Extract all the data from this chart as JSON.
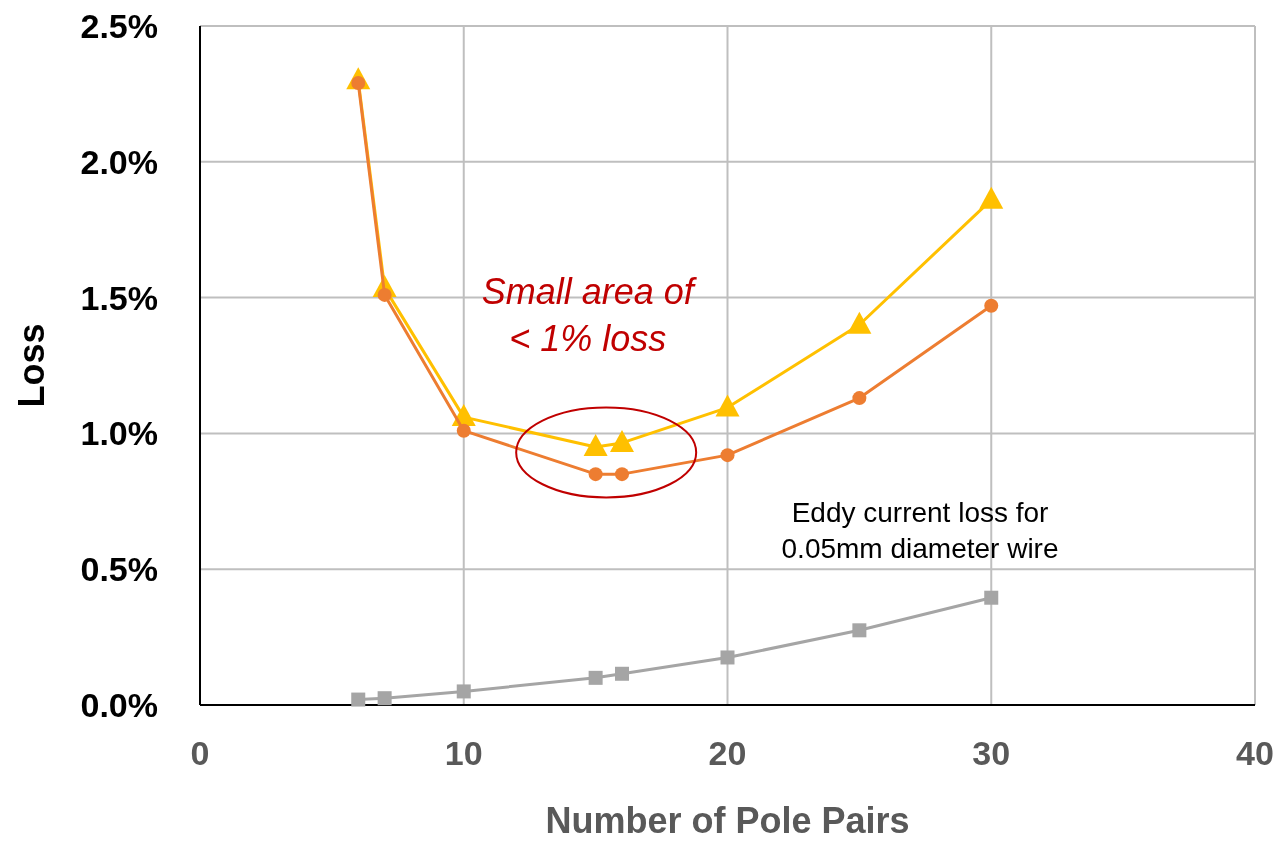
{
  "chart_data": {
    "type": "line",
    "xlabel": "Number of Pole Pairs",
    "ylabel": "Loss",
    "xlim": [
      0,
      40
    ],
    "xticks": [
      0,
      10,
      20,
      30,
      40
    ],
    "ylim": [
      0,
      2.5
    ],
    "yticks": [
      {
        "value": 0,
        "label": "0.0%"
      },
      {
        "value": 0.5,
        "label": "0.5%"
      },
      {
        "value": 1,
        "label": "1.0%"
      },
      {
        "value": 1.5,
        "label": "1.5%"
      },
      {
        "value": 2,
        "label": "2.0%"
      },
      {
        "value": 2.5,
        "label": "2.5%"
      }
    ],
    "grid": true,
    "line_style": "solid",
    "x": [
      6,
      7,
      10,
      15,
      16,
      20,
      25,
      30
    ],
    "series": [
      {
        "color": "#ffc000",
        "marker": "triangle",
        "values": [
          2.3,
          1.535,
          1.06,
          0.95,
          0.965,
          1.095,
          1.4,
          1.86
        ]
      },
      {
        "color": "#ed7d31",
        "marker": "circle",
        "values": [
          2.29,
          1.51,
          1.01,
          0.85,
          0.85,
          0.92,
          1.13,
          1.47
        ]
      },
      {
        "color": "#a5a5a5",
        "marker": "square",
        "values": [
          0.02,
          0.025,
          0.05,
          0.1,
          0.115,
          0.175,
          0.275,
          0.395
        ]
      }
    ],
    "annotations": [
      "Small area of\n< 1% loss",
      "Eddy current loss for\n0.05mm diameter wire"
    ]
  }
}
